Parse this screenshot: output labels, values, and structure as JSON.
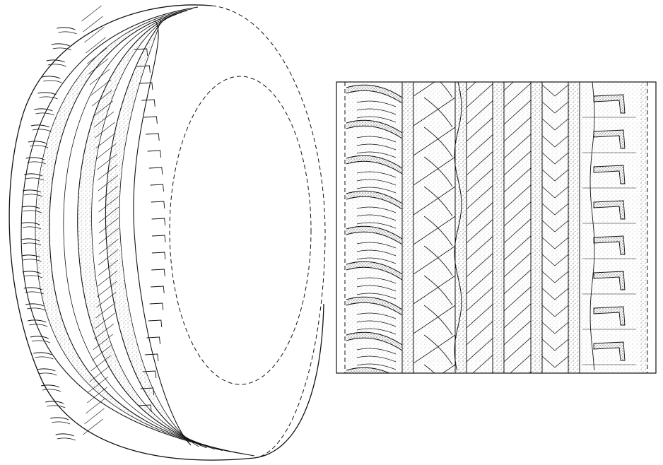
{
  "figure": {
    "kind": "patent design drawing",
    "views": [
      {
        "name": "perspective-view",
        "description_visible": false
      },
      {
        "name": "tread-plan-view",
        "description_visible": false
      }
    ],
    "colors": {
      "ink": "#111111",
      "paper": "#ffffff",
      "stipple": "#555555"
    },
    "line_style": {
      "solid": "solid",
      "broken": "dashed"
    }
  }
}
